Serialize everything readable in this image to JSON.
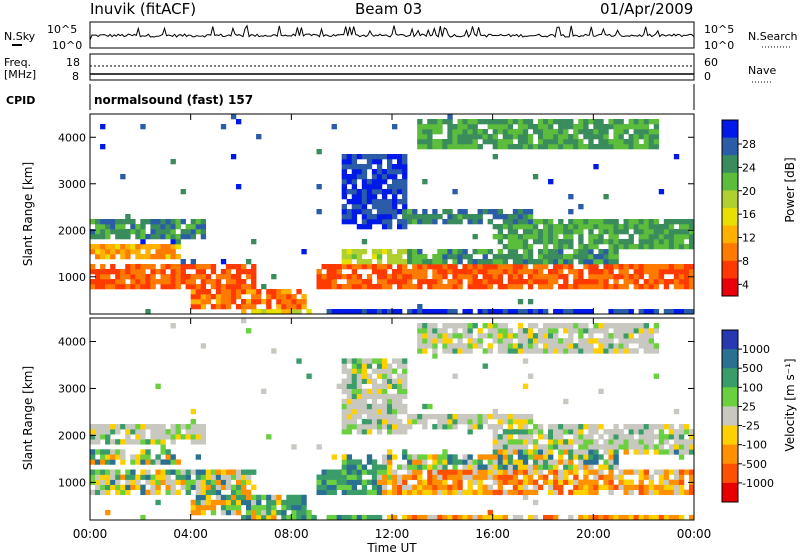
{
  "header": {
    "station": "Inuvik (fitACF)",
    "beam": "Beam 03",
    "date": "01/Apr/2009"
  },
  "top_panels": {
    "nsky_label": "N.Sky",
    "nsky_ticks": [
      "10^5",
      "10^0"
    ],
    "nsearch_label": "N.Search",
    "nsearch_ticks": [
      "10^5",
      "10^0"
    ],
    "freq_label_line1": "Freq.",
    "freq_label_line2": "[MHz]",
    "freq_ticks": [
      "18",
      "8"
    ],
    "nave_label": "Nave",
    "nave_ticks": [
      "60",
      "0"
    ],
    "cpid_label": "CPID",
    "cpid_text": "normalsound (fast) 157"
  },
  "chart_data": [
    {
      "type": "heatmap",
      "panel": "power",
      "ylabel": "Slant Range [km]",
      "y_ticks": [
        "1000",
        "2000",
        "3000",
        "4000"
      ],
      "ylim": [
        200,
        4500
      ],
      "xlim_hours": [
        0,
        24
      ],
      "colorbar_label": "Power [dB]",
      "colorbar_ticks": [
        "28",
        "24",
        "20",
        "16",
        "12",
        "8",
        "4"
      ],
      "colorbar_colors": [
        "#e8000b",
        "#ff3a00",
        "#ff7a00",
        "#ffb000",
        "#e8e000",
        "#b0d030",
        "#5cbc3c",
        "#3a8c5c",
        "#2a5ca8",
        "#0018e8"
      ],
      "colorbar_layout": "right, high values at top"
    },
    {
      "type": "heatmap",
      "panel": "velocity",
      "ylabel": "Slant Range [km]",
      "y_ticks": [
        "1000",
        "2000",
        "3000",
        "4000"
      ],
      "ylim": [
        200,
        4500
      ],
      "xlim_hours": [
        0,
        24
      ],
      "colorbar_label": "Velocity [m s⁻¹]",
      "colorbar_ticks": [
        "1000",
        "500",
        "100",
        "25",
        "-25",
        "-100",
        "-500",
        "-1000"
      ],
      "colorbar_colors": [
        "#2838b0",
        "#2a7090",
        "#3a9c68",
        "#6ad040",
        "#c8c8c0",
        "#ffd000",
        "#ff9000",
        "#ff5000",
        "#e80000"
      ],
      "colorbar_layout": "right, positive at top"
    }
  ],
  "x_axis": {
    "ticks": [
      "00:00",
      "04:00",
      "08:00",
      "12:00",
      "16:00",
      "20:00",
      "00:00"
    ],
    "label": "Time UT"
  }
}
